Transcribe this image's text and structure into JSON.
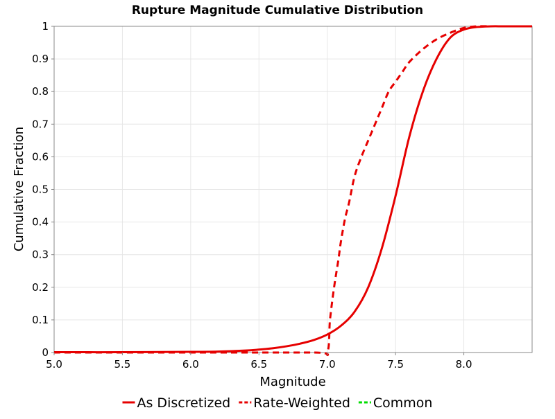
{
  "chart_data": {
    "type": "line",
    "title": "Rupture Magnitude Cumulative Distribution",
    "xlabel": "Magnitude",
    "ylabel": "Cumulative Fraction",
    "xlim": [
      5.0,
      8.5
    ],
    "ylim": [
      0,
      1
    ],
    "x_ticks": [
      5.0,
      5.5,
      6.0,
      6.5,
      7.0,
      7.5,
      8.0
    ],
    "x_tick_labels": [
      "5.0",
      "5.5",
      "6.0",
      "6.5",
      "7.0",
      "7.5",
      "8.0"
    ],
    "y_ticks": [
      0,
      0.1,
      0.2,
      0.3,
      0.4,
      0.5,
      0.6,
      0.7,
      0.8,
      0.9,
      1
    ],
    "y_tick_labels": [
      "0",
      "0.1",
      "0.2",
      "0.3",
      "0.4",
      "0.5",
      "0.6",
      "0.7",
      "0.8",
      "0.9",
      "1"
    ],
    "grid": true,
    "legend_position": "bottom",
    "series": [
      {
        "name": "As Discretized",
        "color": "#e60000",
        "dash": "solid",
        "x": [
          5.0,
          5.5,
          6.0,
          6.2,
          6.4,
          6.5,
          6.6,
          6.7,
          6.8,
          6.9,
          7.0,
          7.1,
          7.2,
          7.3,
          7.4,
          7.5,
          7.6,
          7.7,
          7.8,
          7.9,
          8.0,
          8.1,
          8.2,
          8.3,
          8.5
        ],
        "y": [
          0.001,
          0.001,
          0.002,
          0.003,
          0.006,
          0.009,
          0.013,
          0.019,
          0.027,
          0.038,
          0.055,
          0.082,
          0.125,
          0.2,
          0.32,
          0.48,
          0.66,
          0.8,
          0.9,
          0.965,
          0.99,
          0.998,
          1.0,
          1.0,
          1.0
        ]
      },
      {
        "name": "Rate-Weighted",
        "color": "#e60000",
        "dash": "dashed",
        "x": [
          5.0,
          6.0,
          6.9,
          7.0,
          7.02,
          7.05,
          7.08,
          7.1,
          7.13,
          7.16,
          7.2,
          7.25,
          7.3,
          7.35,
          7.4,
          7.45,
          7.5,
          7.55,
          7.6,
          7.7,
          7.8,
          7.9,
          8.0,
          8.1,
          8.2
        ],
        "y": [
          0.0,
          0.0,
          0.0,
          0.0,
          0.1,
          0.2,
          0.28,
          0.34,
          0.41,
          0.46,
          0.54,
          0.6,
          0.65,
          0.7,
          0.75,
          0.8,
          0.83,
          0.86,
          0.89,
          0.93,
          0.96,
          0.98,
          0.995,
          1.0,
          1.0
        ]
      },
      {
        "name": "Common",
        "color": "#00dd00",
        "dash": "dashed",
        "x": [],
        "y": []
      }
    ]
  }
}
